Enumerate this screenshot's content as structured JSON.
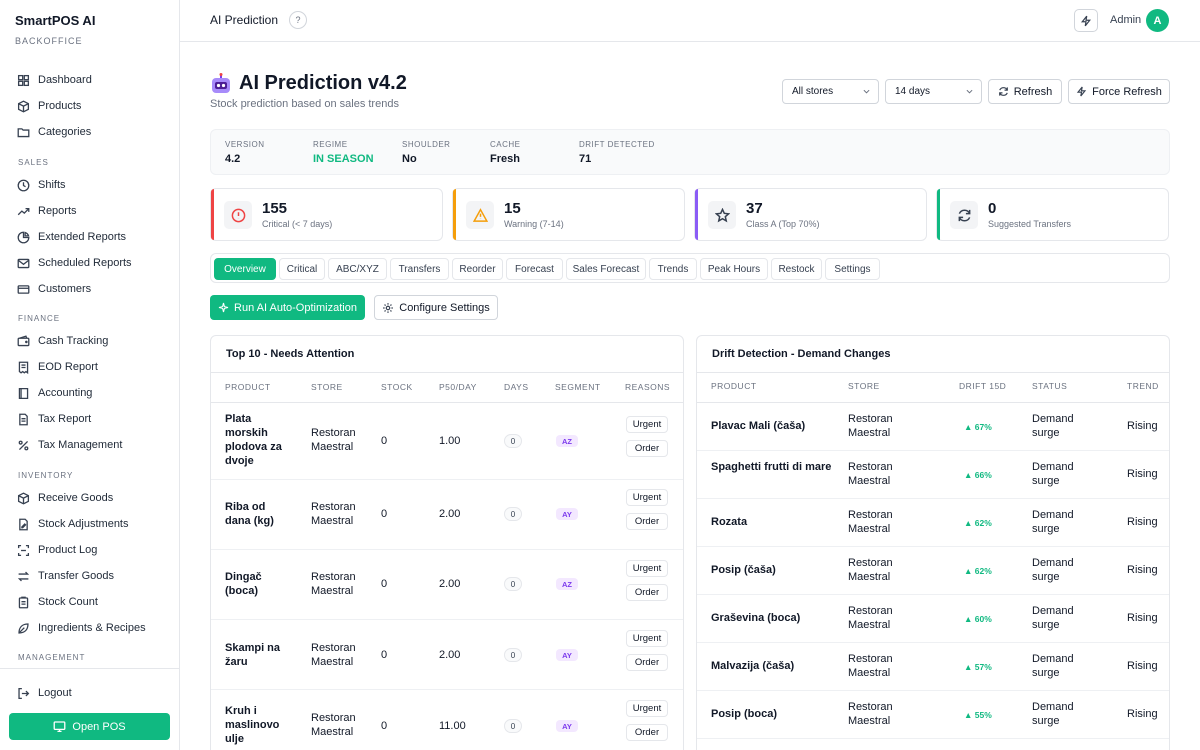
{
  "brand": {
    "name": "SmartPOS AI",
    "sub": "BACKOFFICE"
  },
  "sidebar": {
    "items": [
      {
        "label": "Dashboard"
      },
      {
        "label": "Products"
      },
      {
        "label": "Categories"
      },
      {
        "label": "Shifts"
      },
      {
        "label": "Reports"
      },
      {
        "label": "Extended Reports"
      },
      {
        "label": "Scheduled Reports"
      },
      {
        "label": "Customers"
      },
      {
        "label": "Cash Tracking"
      },
      {
        "label": "EOD Report"
      },
      {
        "label": "Accounting"
      },
      {
        "label": "Tax Report"
      },
      {
        "label": "Tax Management"
      },
      {
        "label": "Receive Goods"
      },
      {
        "label": "Stock Adjustments"
      },
      {
        "label": "Product Log"
      },
      {
        "label": "Transfer Goods"
      },
      {
        "label": "Stock Count"
      },
      {
        "label": "Ingredients & Recipes"
      }
    ],
    "sections": {
      "sales": "SALES",
      "finance": "FINANCE",
      "inventory": "INVENTORY",
      "management": "MANAGEMENT"
    },
    "logout": "Logout",
    "open_pos": "Open POS"
  },
  "topbar": {
    "title": "AI Prediction",
    "help": "?",
    "user": "Admin",
    "avatar": "A"
  },
  "header": {
    "title": "AI Prediction v4.2",
    "subtitle": "Stock prediction based on sales trends",
    "store_select": "All stores",
    "days_select": "14 days",
    "refresh": "Refresh",
    "force_refresh": "Force Refresh"
  },
  "info": [
    {
      "label": "VERSION",
      "value": "4.2"
    },
    {
      "label": "REGIME",
      "value": "IN SEASON"
    },
    {
      "label": "SHOULDER",
      "value": "No"
    },
    {
      "label": "CACHE",
      "value": "Fresh"
    },
    {
      "label": "DRIFT DETECTED",
      "value": "71"
    }
  ],
  "kpis": [
    {
      "value": "155",
      "label": "Critical (< 7 days)"
    },
    {
      "value": "15",
      "label": "Warning (7-14)"
    },
    {
      "value": "37",
      "label": "Class A (Top 70%)"
    },
    {
      "value": "0",
      "label": "Suggested Transfers"
    }
  ],
  "tabs": [
    "Overview",
    "Critical",
    "ABC/XYZ",
    "Transfers",
    "Reorder",
    "Forecast",
    "Sales Forecast",
    "Trends",
    "Peak Hours",
    "Restock",
    "Settings"
  ],
  "actions": {
    "run": "Run AI Auto-Optimization",
    "configure": "Configure Settings"
  },
  "attention": {
    "title": "Top 10 - Needs Attention",
    "columns": [
      "PRODUCT",
      "STORE",
      "STOCK",
      "P50/DAY",
      "DAYS",
      "SEGMENT",
      "REASONS"
    ],
    "rows": [
      {
        "product": "Plata morskih plodova za dvoje",
        "store": "Restoran Maestral",
        "stock": "0",
        "p50": "1.00",
        "days": "0",
        "segment": "AZ",
        "r1": "Urgent",
        "r2": "Order"
      },
      {
        "product": "Riba od dana (kg)",
        "store": "Restoran Maestral",
        "stock": "0",
        "p50": "2.00",
        "days": "0",
        "segment": "AY",
        "r1": "Urgent",
        "r2": "Order"
      },
      {
        "product": "Dingač (boca)",
        "store": "Restoran Maestral",
        "stock": "0",
        "p50": "2.00",
        "days": "0",
        "segment": "AZ",
        "r1": "Urgent",
        "r2": "Order"
      },
      {
        "product": "Skampi na žaru",
        "store": "Restoran Maestral",
        "stock": "0",
        "p50": "2.00",
        "days": "0",
        "segment": "AY",
        "r1": "Urgent",
        "r2": "Order"
      },
      {
        "product": "Kruh i maslinovo ulje",
        "store": "Restoran Maestral",
        "stock": "0",
        "p50": "11.00",
        "days": "0",
        "segment": "AY",
        "r1": "Urgent",
        "r2": "Order"
      }
    ]
  },
  "drift": {
    "title": "Drift Detection - Demand Changes",
    "columns": [
      "PRODUCT",
      "STORE",
      "DRIFT 15D",
      "STATUS",
      "TREND"
    ],
    "rows": [
      {
        "product": "Plavac Mali (čaša)",
        "store": "Restoran Maestral",
        "drift": "▲ 67%",
        "status": "Demand surge",
        "trend": "Rising"
      },
      {
        "product": "Spaghetti frutti di mare",
        "store": "Restoran Maestral",
        "drift": "▲ 66%",
        "status": "Demand surge",
        "trend": "Rising"
      },
      {
        "product": "Rozata",
        "store": "Restoran Maestral",
        "drift": "▲ 62%",
        "status": "Demand surge",
        "trend": "Rising"
      },
      {
        "product": "Posip (čaša)",
        "store": "Restoran Maestral",
        "drift": "▲ 62%",
        "status": "Demand surge",
        "trend": "Rising"
      },
      {
        "product": "Graševina (boca)",
        "store": "Restoran Maestral",
        "drift": "▲ 60%",
        "status": "Demand surge",
        "trend": "Rising"
      },
      {
        "product": "Malvazija (čaša)",
        "store": "Restoran Maestral",
        "drift": "▲ 57%",
        "status": "Demand surge",
        "trend": "Rising"
      },
      {
        "product": "Posip (boca)",
        "store": "Restoran Maestral",
        "drift": "▲ 55%",
        "status": "Demand surge",
        "trend": "Rising"
      }
    ]
  },
  "colors": {
    "accent": "#10b981",
    "critical": "#ef4444",
    "warning": "#f59e0b",
    "classA": "#8b5cf6",
    "transfers": "#10b981"
  }
}
